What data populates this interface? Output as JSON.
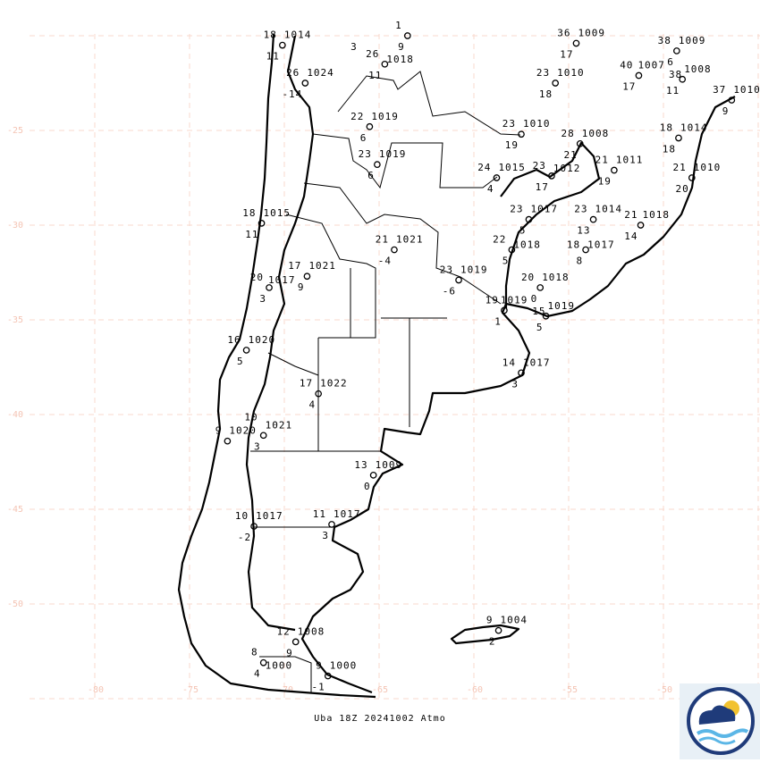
{
  "caption": "Uba 18Z 20241002 Atmo",
  "grid": {
    "lon_labels": [
      "-80",
      "-75",
      "-70",
      "-65",
      "-60",
      "-55",
      "-50"
    ],
    "lat_labels": [
      "-25",
      "-30",
      "-35",
      "-40",
      "-45",
      "-50"
    ],
    "color": "#f8d8cc"
  },
  "logo": {
    "name": "weather-logo-icon",
    "colors": [
      "#1f3b7a",
      "#5bb6e6",
      "#f2c230"
    ]
  },
  "stations": [
    {
      "lon": -70.1,
      "lat": -20.5,
      "temp": "18",
      "pres": "1014",
      "dew": "11"
    },
    {
      "lon": -66.0,
      "lat": -20.0,
      "temp": "",
      "pres": "",
      "dew": "3"
    },
    {
      "lon": -63.5,
      "lat": -20.0,
      "temp": "1",
      "pres": "",
      "dew": "9"
    },
    {
      "lon": -64.7,
      "lat": -21.5,
      "temp": "26",
      "pres": "1018",
      "dew": "11"
    },
    {
      "lon": -68.9,
      "lat": -22.5,
      "temp": "26",
      "pres": "1024",
      "dew": "-14"
    },
    {
      "lon": -65.5,
      "lat": -24.8,
      "temp": "22",
      "pres": "1019",
      "dew": "6"
    },
    {
      "lon": -65.1,
      "lat": -26.8,
      "temp": "23",
      "pres": "1019",
      "dew": "6"
    },
    {
      "lon": -54.6,
      "lat": -20.4,
      "temp": "36",
      "pres": "1009",
      "dew": "17"
    },
    {
      "lon": -49.3,
      "lat": -20.8,
      "temp": "38",
      "pres": "1009",
      "dew": "6"
    },
    {
      "lon": -51.3,
      "lat": -22.1,
      "temp": "40",
      "pres": "1007",
      "dew": "17"
    },
    {
      "lon": -49.0,
      "lat": -22.3,
      "temp": "38",
      "pres": "1008",
      "dew": "11"
    },
    {
      "lon": -46.4,
      "lat": -23.4,
      "temp": "37",
      "pres": "1010",
      "dew": "9"
    },
    {
      "lon": -55.7,
      "lat": -22.5,
      "temp": "23",
      "pres": "1010",
      "dew": "18"
    },
    {
      "lon": -57.5,
      "lat": -25.2,
      "temp": "23",
      "pres": "1010",
      "dew": "19"
    },
    {
      "lon": -54.4,
      "lat": -25.7,
      "temp": "28",
      "pres": "1008",
      "dew": "21"
    },
    {
      "lon": -52.6,
      "lat": -27.1,
      "temp": "21",
      "pres": "1011",
      "dew": "19"
    },
    {
      "lon": -49.2,
      "lat": -25.4,
      "temp": "18",
      "pres": "1014",
      "dew": "18"
    },
    {
      "lon": -48.5,
      "lat": -27.5,
      "temp": "21",
      "pres": "1010",
      "dew": "20"
    },
    {
      "lon": -58.8,
      "lat": -27.5,
      "temp": "24",
      "pres": "1015",
      "dew": "4"
    },
    {
      "lon": -55.9,
      "lat": -27.4,
      "temp": "23",
      "pres": "1012",
      "dew": "17"
    },
    {
      "lon": -71.2,
      "lat": -29.9,
      "temp": "18",
      "pres": "1015",
      "dew": "11"
    },
    {
      "lon": -57.1,
      "lat": -29.7,
      "temp": "23",
      "pres": "1017",
      "dew": "5"
    },
    {
      "lon": -53.7,
      "lat": -29.7,
      "temp": "23",
      "pres": "1014",
      "dew": "13"
    },
    {
      "lon": -51.2,
      "lat": -30.0,
      "temp": "21",
      "pres": "1018",
      "dew": "14"
    },
    {
      "lon": -64.2,
      "lat": -31.3,
      "temp": "21",
      "pres": "1021",
      "dew": "-4"
    },
    {
      "lon": -58.0,
      "lat": -31.3,
      "temp": "22",
      "pres": "1018",
      "dew": "5"
    },
    {
      "lon": -54.1,
      "lat": -31.3,
      "temp": "18",
      "pres": "1017",
      "dew": "8"
    },
    {
      "lon": -68.8,
      "lat": -32.7,
      "temp": "17",
      "pres": "1021",
      "dew": "9"
    },
    {
      "lon": -70.8,
      "lat": -33.3,
      "temp": "20",
      "pres": "1017",
      "dew": "3"
    },
    {
      "lon": -60.8,
      "lat": -32.9,
      "temp": "23",
      "pres": "1019",
      "dew": "-6"
    },
    {
      "lon": -56.5,
      "lat": -33.3,
      "temp": "20",
      "pres": "1018",
      "dew": "0"
    },
    {
      "lon": -58.4,
      "lat": -34.5,
      "temp": "19",
      "pres": "1019",
      "dew": "1"
    },
    {
      "lon": -56.2,
      "lat": -34.8,
      "temp": "15",
      "pres": "1019",
      "dew": "5"
    },
    {
      "lon": -72.0,
      "lat": -36.6,
      "temp": "16",
      "pres": "1020",
      "dew": "5"
    },
    {
      "lon": -57.5,
      "lat": -37.8,
      "temp": "14",
      "pres": "1017",
      "dew": "3"
    },
    {
      "lon": -68.2,
      "lat": -38.9,
      "temp": "17",
      "pres": "1022",
      "dew": "4"
    },
    {
      "lon": -73.0,
      "lat": -41.4,
      "temp": "9",
      "pres": "1020",
      "dew": ""
    },
    {
      "lon": -71.1,
      "lat": -41.1,
      "temp": "10",
      "pres": "1021",
      "dew": "3"
    },
    {
      "lon": -65.3,
      "lat": -43.2,
      "temp": "13",
      "pres": "1009",
      "dew": "0"
    },
    {
      "lon": -71.6,
      "lat": -45.9,
      "temp": "10",
      "pres": "1017",
      "dew": "-2"
    },
    {
      "lon": -67.5,
      "lat": -45.8,
      "temp": "11",
      "pres": "1017",
      "dew": "3"
    },
    {
      "lon": -69.4,
      "lat": -52.0,
      "temp": "12",
      "pres": "1008",
      "dew": "9"
    },
    {
      "lon": -71.1,
      "lat": -53.1,
      "temp": "8",
      "pres": "1000",
      "dew": "4"
    },
    {
      "lon": -67.7,
      "lat": -53.8,
      "temp": "9",
      "pres": "1000",
      "dew": "-1"
    },
    {
      "lon": -58.7,
      "lat": -51.4,
      "temp": "9",
      "pres": "1004",
      "dew": "2"
    }
  ]
}
